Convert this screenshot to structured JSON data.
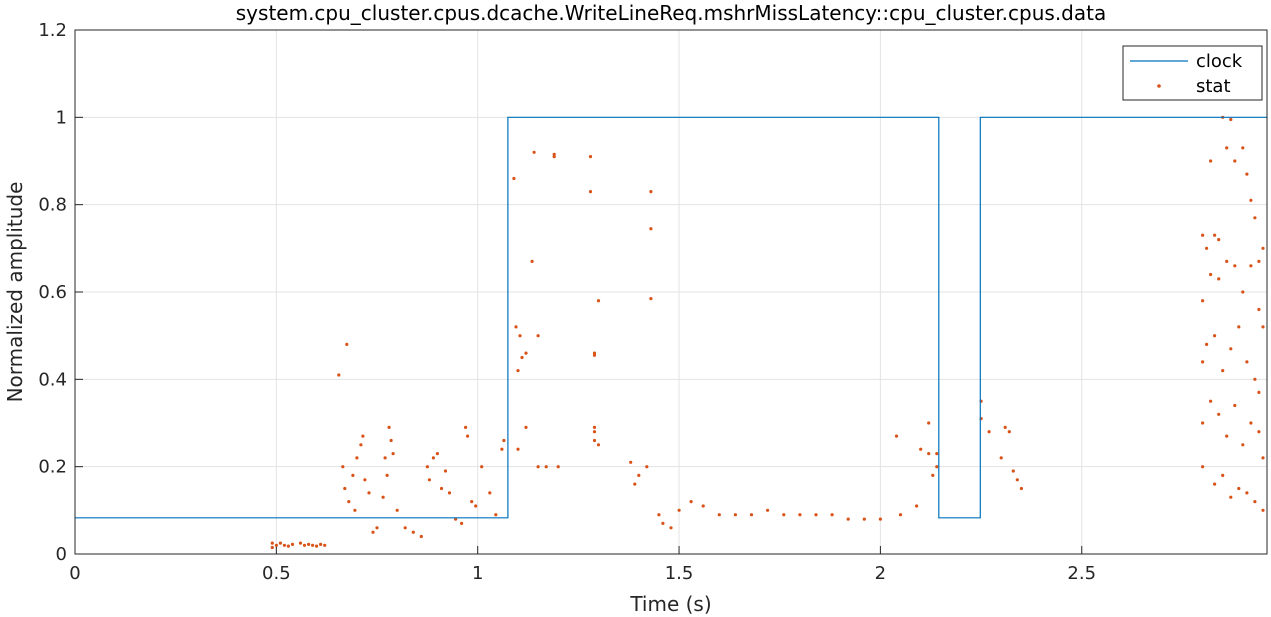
{
  "chart_data": {
    "type": "scatter",
    "title": "system.cpu_cluster.cpus.dcache.WriteLineReq.mshrMissLatency::cpu_cluster.cpus.data",
    "xlabel": "Time (s)",
    "ylabel": "Normalized amplitude",
    "xlim": [
      0,
      2.96
    ],
    "ylim": [
      0,
      1.2
    ],
    "xticks": [
      0,
      0.5,
      1,
      1.5,
      2,
      2.5
    ],
    "xtick_labels": [
      "0",
      "0.5",
      "1",
      "1.5",
      "2",
      "2.5"
    ],
    "yticks": [
      0,
      0.2,
      0.4,
      0.6,
      0.8,
      1,
      1.2
    ],
    "ytick_labels": [
      "0",
      "0.2",
      "0.4",
      "0.6",
      "0.8",
      "1",
      "1.2"
    ],
    "grid": true,
    "legend_position": "top-right",
    "series": [
      {
        "name": "clock",
        "kind": "line",
        "color": "#0072bd",
        "points": [
          [
            0,
            0.083
          ],
          [
            1.075,
            0.083
          ],
          [
            1.075,
            1
          ],
          [
            2.145,
            1
          ],
          [
            2.145,
            0.083
          ],
          [
            2.248,
            0.083
          ],
          [
            2.248,
            1
          ],
          [
            2.96,
            1
          ]
        ]
      },
      {
        "name": "stat",
        "kind": "scatter",
        "color": "#d95319",
        "points": [
          [
            0.49,
            0.025
          ],
          [
            0.49,
            0.015
          ],
          [
            0.5,
            0.02
          ],
          [
            0.51,
            0.025
          ],
          [
            0.52,
            0.02
          ],
          [
            0.53,
            0.018
          ],
          [
            0.54,
            0.022
          ],
          [
            0.56,
            0.025
          ],
          [
            0.57,
            0.02
          ],
          [
            0.58,
            0.022
          ],
          [
            0.59,
            0.02
          ],
          [
            0.6,
            0.018
          ],
          [
            0.61,
            0.022
          ],
          [
            0.62,
            0.02
          ],
          [
            0.655,
            0.41
          ],
          [
            0.675,
            0.48
          ],
          [
            0.665,
            0.2
          ],
          [
            0.67,
            0.15
          ],
          [
            0.68,
            0.12
          ],
          [
            0.69,
            0.18
          ],
          [
            0.695,
            0.1
          ],
          [
            0.7,
            0.22
          ],
          [
            0.71,
            0.25
          ],
          [
            0.715,
            0.27
          ],
          [
            0.72,
            0.17
          ],
          [
            0.73,
            0.14
          ],
          [
            0.74,
            0.05
          ],
          [
            0.75,
            0.06
          ],
          [
            0.765,
            0.13
          ],
          [
            0.77,
            0.22
          ],
          [
            0.775,
            0.18
          ],
          [
            0.78,
            0.29
          ],
          [
            0.785,
            0.26
          ],
          [
            0.79,
            0.23
          ],
          [
            0.8,
            0.1
          ],
          [
            0.82,
            0.06
          ],
          [
            0.84,
            0.05
          ],
          [
            0.86,
            0.04
          ],
          [
            0.875,
            0.2
          ],
          [
            0.88,
            0.17
          ],
          [
            0.89,
            0.22
          ],
          [
            0.9,
            0.23
          ],
          [
            0.91,
            0.15
          ],
          [
            0.92,
            0.19
          ],
          [
            0.93,
            0.14
          ],
          [
            0.945,
            0.08
          ],
          [
            0.96,
            0.07
          ],
          [
            0.97,
            0.29
          ],
          [
            0.975,
            0.27
          ],
          [
            0.985,
            0.12
          ],
          [
            0.995,
            0.11
          ],
          [
            1.01,
            0.2
          ],
          [
            1.03,
            0.14
          ],
          [
            1.045,
            0.09
          ],
          [
            1.06,
            0.24
          ],
          [
            1.065,
            0.26
          ],
          [
            1.09,
            0.86
          ],
          [
            1.1,
            0.42
          ],
          [
            1.095,
            0.52
          ],
          [
            1.105,
            0.5
          ],
          [
            1.11,
            0.45
          ],
          [
            1.12,
            0.46
          ],
          [
            1.14,
            0.92
          ],
          [
            1.15,
            0.5
          ],
          [
            1.135,
            0.67
          ],
          [
            1.12,
            0.29
          ],
          [
            1.1,
            0.24
          ],
          [
            1.15,
            0.2
          ],
          [
            1.19,
            0.91
          ],
          [
            1.19,
            0.915
          ],
          [
            1.17,
            0.2
          ],
          [
            1.2,
            0.2
          ],
          [
            1.28,
            0.91
          ],
          [
            1.28,
            0.83
          ],
          [
            1.29,
            0.46
          ],
          [
            1.29,
            0.455
          ],
          [
            1.3,
            0.58
          ],
          [
            1.29,
            0.28
          ],
          [
            1.3,
            0.25
          ],
          [
            1.29,
            0.26
          ],
          [
            1.29,
            0.29
          ],
          [
            1.38,
            0.21
          ],
          [
            1.39,
            0.16
          ],
          [
            1.4,
            0.18
          ],
          [
            1.42,
            0.2
          ],
          [
            1.43,
            0.83
          ],
          [
            1.43,
            0.745
          ],
          [
            1.43,
            0.585
          ],
          [
            1.45,
            0.09
          ],
          [
            1.46,
            0.07
          ],
          [
            1.48,
            0.06
          ],
          [
            1.5,
            0.1
          ],
          [
            1.53,
            0.12
          ],
          [
            1.56,
            0.11
          ],
          [
            1.6,
            0.09
          ],
          [
            1.64,
            0.09
          ],
          [
            1.68,
            0.09
          ],
          [
            1.72,
            0.1
          ],
          [
            1.76,
            0.09
          ],
          [
            1.8,
            0.09
          ],
          [
            1.84,
            0.09
          ],
          [
            1.88,
            0.09
          ],
          [
            1.92,
            0.08
          ],
          [
            1.96,
            0.08
          ],
          [
            2.0,
            0.08
          ],
          [
            2.04,
            0.27
          ],
          [
            2.05,
            0.09
          ],
          [
            2.09,
            0.11
          ],
          [
            2.1,
            0.24
          ],
          [
            2.12,
            0.23
          ],
          [
            2.12,
            0.3
          ],
          [
            2.13,
            0.18
          ],
          [
            2.14,
            0.2
          ],
          [
            2.14,
            0.23
          ],
          [
            2.25,
            0.35
          ],
          [
            2.25,
            0.31
          ],
          [
            2.27,
            0.28
          ],
          [
            2.3,
            0.22
          ],
          [
            2.31,
            0.29
          ],
          [
            2.32,
            0.28
          ],
          [
            2.33,
            0.19
          ],
          [
            2.34,
            0.17
          ],
          [
            2.35,
            0.15
          ],
          [
            2.8,
            0.73
          ],
          [
            2.81,
            0.7
          ],
          [
            2.82,
            0.9
          ],
          [
            2.83,
            0.73
          ],
          [
            2.84,
            0.72
          ],
          [
            2.85,
            1.0
          ],
          [
            2.86,
            0.93
          ],
          [
            2.87,
            0.995
          ],
          [
            2.88,
            0.9
          ],
          [
            2.9,
            0.93
          ],
          [
            2.91,
            0.87
          ],
          [
            2.92,
            0.81
          ],
          [
            2.93,
            0.77
          ],
          [
            2.94,
            0.67
          ],
          [
            2.95,
            0.7
          ],
          [
            2.8,
            0.58
          ],
          [
            2.82,
            0.64
          ],
          [
            2.84,
            0.63
          ],
          [
            2.86,
            0.67
          ],
          [
            2.88,
            0.66
          ],
          [
            2.9,
            0.6
          ],
          [
            2.92,
            0.66
          ],
          [
            2.94,
            0.56
          ],
          [
            2.95,
            0.52
          ],
          [
            2.8,
            0.44
          ],
          [
            2.81,
            0.48
          ],
          [
            2.83,
            0.5
          ],
          [
            2.85,
            0.42
          ],
          [
            2.87,
            0.47
          ],
          [
            2.89,
            0.52
          ],
          [
            2.91,
            0.44
          ],
          [
            2.93,
            0.4
          ],
          [
            2.94,
            0.37
          ],
          [
            2.8,
            0.3
          ],
          [
            2.82,
            0.35
          ],
          [
            2.84,
            0.32
          ],
          [
            2.86,
            0.27
          ],
          [
            2.88,
            0.34
          ],
          [
            2.9,
            0.25
          ],
          [
            2.92,
            0.3
          ],
          [
            2.94,
            0.28
          ],
          [
            2.95,
            0.22
          ],
          [
            2.8,
            0.2
          ],
          [
            2.83,
            0.16
          ],
          [
            2.85,
            0.18
          ],
          [
            2.87,
            0.13
          ],
          [
            2.89,
            0.15
          ],
          [
            2.91,
            0.14
          ],
          [
            2.93,
            0.12
          ],
          [
            2.95,
            0.1
          ]
        ]
      }
    ]
  }
}
